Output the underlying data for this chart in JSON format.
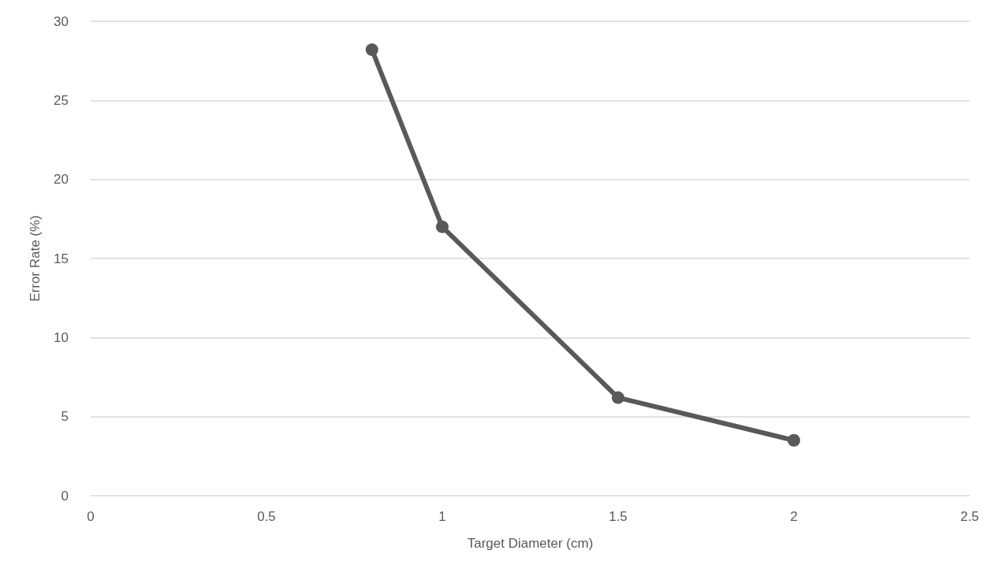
{
  "chart_data": {
    "type": "line",
    "xlabel": "Target Diameter (cm)",
    "ylabel": "Error Rate (%)",
    "x": [
      0.8,
      1,
      1.5,
      2
    ],
    "series": [
      {
        "color": "#595959",
        "values": [
          28.2,
          17.0,
          6.2,
          3.5
        ]
      }
    ],
    "xlim": [
      0,
      2.5
    ],
    "xticks": [
      0,
      0.5,
      1,
      1.5,
      2,
      2.5
    ],
    "ylim": [
      0,
      30
    ],
    "yticks": [
      0,
      5,
      10,
      15,
      20,
      25,
      30
    ],
    "grid": "y",
    "marker": "circle",
    "line_style": "solid"
  }
}
